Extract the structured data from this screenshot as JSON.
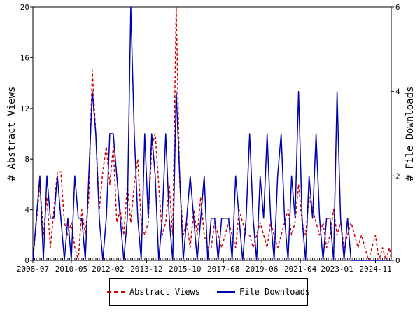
{
  "chart_data": {
    "type": "line",
    "title": "",
    "y_left_label": "# Abstract Views",
    "y_right_label": "# File Downloads",
    "x_ticks": [
      "2008-07",
      "2010-05",
      "2012-02",
      "2013-12",
      "2015-10",
      "2017-08",
      "2019-06",
      "2021-04",
      "2023-01",
      "2024-11"
    ],
    "y_left_ticks": [
      "0",
      "4",
      "8",
      "12",
      "16",
      "20"
    ],
    "y_right_ticks": [
      "0",
      "2",
      "4",
      "6"
    ],
    "y_left_range": [
      0,
      20
    ],
    "y_right_range": [
      0,
      6
    ],
    "x_range": [
      "2008-07",
      "2025-08"
    ],
    "grid": false,
    "legend_position": "bottom",
    "series": [
      {
        "name": "Abstract Views",
        "axis": "left",
        "color": "#cc0000",
        "style": "dashed",
        "points": [
          [
            "2008-07",
            0
          ],
          [
            "2008-09",
            3
          ],
          [
            "2008-11",
            6
          ],
          [
            "2009-01",
            2
          ],
          [
            "2009-03",
            5
          ],
          [
            "2009-05",
            1
          ],
          [
            "2009-07",
            4
          ],
          [
            "2009-09",
            7
          ],
          [
            "2009-11",
            7
          ],
          [
            "2010-01",
            3
          ],
          [
            "2010-03",
            2
          ],
          [
            "2010-05",
            3
          ],
          [
            "2010-07",
            1
          ],
          [
            "2010-09",
            0
          ],
          [
            "2010-11",
            4
          ],
          [
            "2011-01",
            2
          ],
          [
            "2011-03",
            5
          ],
          [
            "2011-05",
            15
          ],
          [
            "2011-07",
            10
          ],
          [
            "2011-09",
            4
          ],
          [
            "2011-11",
            7
          ],
          [
            "2012-01",
            9
          ],
          [
            "2012-03",
            6
          ],
          [
            "2012-05",
            9
          ],
          [
            "2012-07",
            3
          ],
          [
            "2012-09",
            4
          ],
          [
            "2012-11",
            2
          ],
          [
            "2013-01",
            6
          ],
          [
            "2013-03",
            3
          ],
          [
            "2013-05",
            6
          ],
          [
            "2013-07",
            8
          ],
          [
            "2013-09",
            3
          ],
          [
            "2013-11",
            2
          ],
          [
            "2014-01",
            3
          ],
          [
            "2014-03",
            9
          ],
          [
            "2014-05",
            10
          ],
          [
            "2014-07",
            6
          ],
          [
            "2014-09",
            2
          ],
          [
            "2014-11",
            3
          ],
          [
            "2015-01",
            6
          ],
          [
            "2015-03",
            2
          ],
          [
            "2015-05",
            20
          ],
          [
            "2015-07",
            6
          ],
          [
            "2015-09",
            2
          ],
          [
            "2015-11",
            3
          ],
          [
            "2016-01",
            1
          ],
          [
            "2016-03",
            4
          ],
          [
            "2016-05",
            2
          ],
          [
            "2016-07",
            5
          ],
          [
            "2016-09",
            2
          ],
          [
            "2016-11",
            1
          ],
          [
            "2017-01",
            1
          ],
          [
            "2017-03",
            3
          ],
          [
            "2017-05",
            2
          ],
          [
            "2017-07",
            1
          ],
          [
            "2017-09",
            2
          ],
          [
            "2017-11",
            3
          ],
          [
            "2018-01",
            2
          ],
          [
            "2018-03",
            1
          ],
          [
            "2018-05",
            4
          ],
          [
            "2018-07",
            3
          ],
          [
            "2018-09",
            2
          ],
          [
            "2018-11",
            2
          ],
          [
            "2019-01",
            1
          ],
          [
            "2019-03",
            2
          ],
          [
            "2019-05",
            3
          ],
          [
            "2019-07",
            2
          ],
          [
            "2019-09",
            1
          ],
          [
            "2019-11",
            3
          ],
          [
            "2020-01",
            2
          ],
          [
            "2020-03",
            1
          ],
          [
            "2020-05",
            2
          ],
          [
            "2020-07",
            3
          ],
          [
            "2020-09",
            4
          ],
          [
            "2020-11",
            2
          ],
          [
            "2021-01",
            3
          ],
          [
            "2021-03",
            6
          ],
          [
            "2021-05",
            3
          ],
          [
            "2021-07",
            2
          ],
          [
            "2021-09",
            5
          ],
          [
            "2021-11",
            4
          ],
          [
            "2022-01",
            3
          ],
          [
            "2022-03",
            2
          ],
          [
            "2022-05",
            3
          ],
          [
            "2022-07",
            1
          ],
          [
            "2022-09",
            2
          ],
          [
            "2022-11",
            4
          ],
          [
            "2023-01",
            2
          ],
          [
            "2023-03",
            3
          ],
          [
            "2023-05",
            1
          ],
          [
            "2023-07",
            2
          ],
          [
            "2023-09",
            3
          ],
          [
            "2023-11",
            2
          ],
          [
            "2024-01",
            1
          ],
          [
            "2024-03",
            2
          ],
          [
            "2024-05",
            1
          ],
          [
            "2024-07",
            0
          ],
          [
            "2024-09",
            1
          ],
          [
            "2024-11",
            2
          ],
          [
            "2025-01",
            0
          ],
          [
            "2025-03",
            1
          ],
          [
            "2025-05",
            0
          ],
          [
            "2025-07",
            1
          ],
          [
            "2025-08",
            0
          ]
        ]
      },
      {
        "name": "File Downloads",
        "axis": "right",
        "color": "#0000aa",
        "style": "solid",
        "points": [
          [
            "2008-07",
            0
          ],
          [
            "2008-09",
            1
          ],
          [
            "2008-11",
            2
          ],
          [
            "2009-01",
            0
          ],
          [
            "2009-03",
            2
          ],
          [
            "2009-05",
            1
          ],
          [
            "2009-07",
            1
          ],
          [
            "2009-09",
            2
          ],
          [
            "2009-11",
            1
          ],
          [
            "2010-01",
            0
          ],
          [
            "2010-03",
            1
          ],
          [
            "2010-05",
            0
          ],
          [
            "2010-07",
            2
          ],
          [
            "2010-09",
            1
          ],
          [
            "2010-11",
            1
          ],
          [
            "2011-01",
            0
          ],
          [
            "2011-03",
            2
          ],
          [
            "2011-05",
            4
          ],
          [
            "2011-07",
            3
          ],
          [
            "2011-09",
            1
          ],
          [
            "2011-11",
            0
          ],
          [
            "2012-01",
            1
          ],
          [
            "2012-03",
            3
          ],
          [
            "2012-05",
            3
          ],
          [
            "2012-07",
            2
          ],
          [
            "2012-09",
            1
          ],
          [
            "2012-11",
            0
          ],
          [
            "2013-01",
            1
          ],
          [
            "2013-03",
            6
          ],
          [
            "2013-05",
            3
          ],
          [
            "2013-07",
            1
          ],
          [
            "2013-09",
            0
          ],
          [
            "2013-11",
            3
          ],
          [
            "2014-01",
            1
          ],
          [
            "2014-03",
            3
          ],
          [
            "2014-05",
            2
          ],
          [
            "2014-07",
            0
          ],
          [
            "2014-09",
            1
          ],
          [
            "2014-11",
            3
          ],
          [
            "2015-01",
            1
          ],
          [
            "2015-03",
            0
          ],
          [
            "2015-05",
            4
          ],
          [
            "2015-07",
            2
          ],
          [
            "2015-09",
            0
          ],
          [
            "2015-11",
            1
          ],
          [
            "2016-01",
            2
          ],
          [
            "2016-03",
            1
          ],
          [
            "2016-05",
            0
          ],
          [
            "2016-07",
            1
          ],
          [
            "2016-09",
            2
          ],
          [
            "2016-11",
            0
          ],
          [
            "2017-01",
            1
          ],
          [
            "2017-03",
            1
          ],
          [
            "2017-05",
            0
          ],
          [
            "2017-07",
            1
          ],
          [
            "2017-09",
            1
          ],
          [
            "2017-11",
            1
          ],
          [
            "2018-01",
            0
          ],
          [
            "2018-03",
            2
          ],
          [
            "2018-05",
            1
          ],
          [
            "2018-07",
            0
          ],
          [
            "2018-09",
            1
          ],
          [
            "2018-11",
            3
          ],
          [
            "2019-01",
            1
          ],
          [
            "2019-03",
            0
          ],
          [
            "2019-05",
            2
          ],
          [
            "2019-07",
            1
          ],
          [
            "2019-09",
            3
          ],
          [
            "2019-11",
            1
          ],
          [
            "2020-01",
            0
          ],
          [
            "2020-03",
            2
          ],
          [
            "2020-05",
            3
          ],
          [
            "2020-07",
            1
          ],
          [
            "2020-09",
            0
          ],
          [
            "2020-11",
            2
          ],
          [
            "2021-01",
            1
          ],
          [
            "2021-03",
            4
          ],
          [
            "2021-05",
            1
          ],
          [
            "2021-07",
            0
          ],
          [
            "2021-09",
            2
          ],
          [
            "2021-11",
            1
          ],
          [
            "2022-01",
            3
          ],
          [
            "2022-03",
            1
          ],
          [
            "2022-05",
            0
          ],
          [
            "2022-07",
            1
          ],
          [
            "2022-09",
            1
          ],
          [
            "2022-11",
            0
          ],
          [
            "2023-01",
            4
          ],
          [
            "2023-03",
            1
          ],
          [
            "2023-05",
            0
          ],
          [
            "2023-07",
            1
          ],
          [
            "2023-09",
            0
          ],
          [
            "2023-11",
            0
          ],
          [
            "2024-01",
            0
          ],
          [
            "2024-03",
            0
          ],
          [
            "2024-05",
            0
          ],
          [
            "2024-07",
            0
          ],
          [
            "2024-09",
            0
          ],
          [
            "2024-11",
            0
          ],
          [
            "2025-01",
            0
          ],
          [
            "2025-03",
            0
          ],
          [
            "2025-05",
            0
          ],
          [
            "2025-07",
            0
          ],
          [
            "2025-08",
            0
          ]
        ]
      }
    ]
  }
}
